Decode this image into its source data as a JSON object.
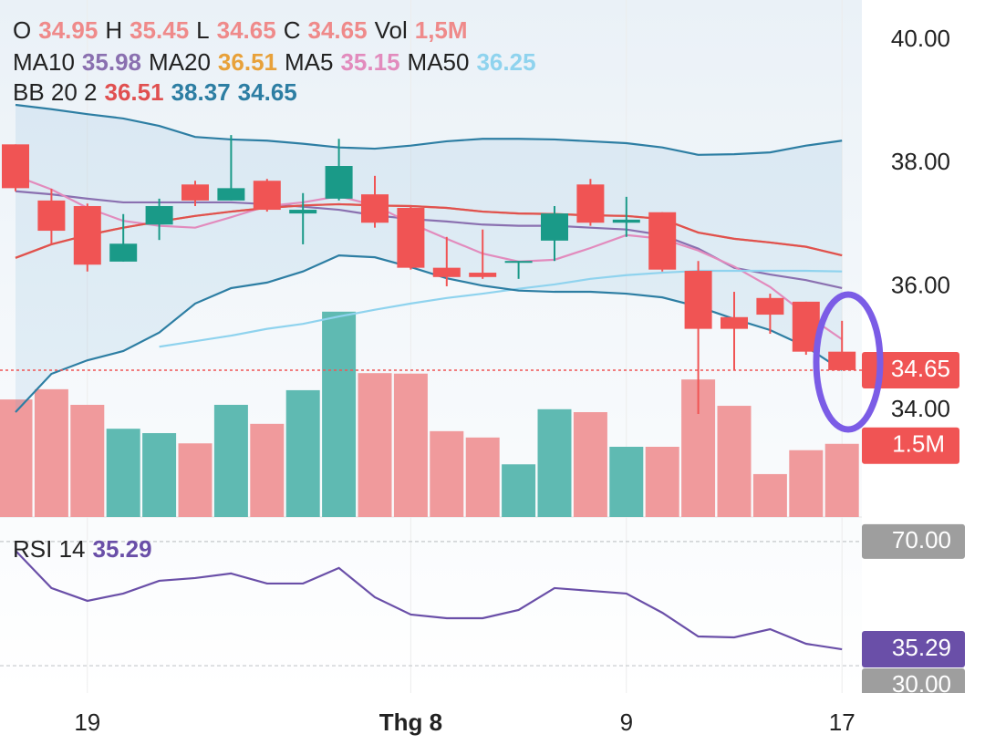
{
  "chart_data": {
    "type": "candlestick",
    "categories": [
      null,
      null,
      "19",
      null,
      null,
      null,
      null,
      null,
      null,
      null,
      null,
      "Thg 8",
      null,
      null,
      null,
      null,
      null,
      "9",
      null,
      null,
      null,
      null,
      null,
      "17"
    ],
    "ohlc_labels": [
      "O",
      "H",
      "L",
      "C"
    ],
    "open": [
      38.31,
      37.4,
      37.31,
      36.41,
      37.01,
      37.66,
      37.4,
      37.72,
      37.19,
      37.43,
      37.5,
      37.28,
      36.31,
      36.23,
      36.39,
      36.75,
      37.66,
      37.04,
      37.21,
      36.26,
      35.51,
      35.82,
      35.76,
      34.95
    ],
    "high": [
      38.31,
      37.59,
      37.35,
      37.18,
      37.43,
      37.72,
      38.46,
      37.75,
      37.52,
      38.4,
      37.8,
      37.31,
      36.81,
      36.93,
      36.42,
      37.31,
      37.75,
      37.46,
      37.21,
      36.42,
      35.92,
      35.89,
      35.76,
      35.45
    ],
    "low": [
      37.55,
      36.69,
      36.25,
      36.41,
      36.76,
      37.31,
      37.4,
      37.22,
      36.69,
      37.4,
      36.96,
      36.28,
      36.01,
      36.13,
      36.13,
      36.42,
      36.99,
      36.81,
      36.25,
      33.94,
      34.65,
      35.24,
      34.9,
      34.65
    ],
    "close": [
      37.6,
      36.91,
      36.36,
      36.7,
      37.31,
      37.4,
      37.6,
      37.25,
      37.25,
      37.96,
      37.04,
      36.31,
      36.16,
      36.16,
      36.42,
      37.19,
      37.04,
      37.09,
      36.28,
      35.32,
      35.32,
      35.55,
      34.95,
      34.65
    ],
    "up_color": "#1a9a88",
    "down_color": "#f05454",
    "up_volume_color": "#5fbab2",
    "down_volume_color": "#f09a9c",
    "header_value_color": "#ef8a8a",
    "ylim": [
      32.27,
      40.65
    ],
    "yticks": [
      {
        "value": 40,
        "label": "40.00"
      },
      {
        "value": 38,
        "label": "38.00"
      },
      {
        "value": 36,
        "label": "36.00"
      },
      {
        "value": 34,
        "label": "34.00"
      }
    ],
    "volume": {
      "name": "Vol",
      "values": [
        2.41,
        2.62,
        2.3,
        1.81,
        1.72,
        1.51,
        2.3,
        1.91,
        2.6,
        4.21,
        2.95,
        2.94,
        1.76,
        1.63,
        1.08,
        2.21,
        2.15,
        1.44,
        1.44,
        2.82,
        2.28,
        0.88,
        1.37,
        1.5
      ]
    },
    "volume_labels": {
      "header": "1,5M",
      "axis": "1.5M"
    },
    "volume_lim": [
      0,
      10.6
    ],
    "lines": [
      {
        "name": "MA10",
        "color": "#8a70b0",
        "values": [
          37.55,
          37.5,
          37.43,
          37.37,
          37.37,
          37.37,
          37.37,
          37.34,
          37.3,
          37.25,
          37.16,
          37.1,
          37.06,
          37.01,
          36.99,
          36.99,
          36.96,
          36.93,
          36.84,
          36.62,
          36.31,
          36.2,
          36.11,
          35.98
        ]
      },
      {
        "name": "MA20",
        "color": "#e8a13a",
        "values": [
          36.47,
          36.69,
          36.84,
          36.96,
          37.06,
          37.15,
          37.22,
          37.28,
          37.32,
          37.34,
          37.32,
          37.31,
          37.28,
          37.22,
          37.19,
          37.18,
          37.16,
          37.15,
          37.1,
          36.88,
          36.78,
          36.72,
          36.65,
          36.51
        ]
      },
      {
        "name": "MA5",
        "color": "#e28bbd",
        "values": [
          37.8,
          37.58,
          37.28,
          37.07,
          36.99,
          36.96,
          37.13,
          37.31,
          37.37,
          37.47,
          37.32,
          37.03,
          36.78,
          36.54,
          36.41,
          36.44,
          36.63,
          36.84,
          36.78,
          36.59,
          36.33,
          36.0,
          35.55,
          35.15
        ]
      },
      {
        "name": "MA50",
        "color": "#8fd3ee",
        "values": [
          null,
          null,
          null,
          null,
          35.03,
          35.12,
          35.21,
          35.32,
          35.4,
          35.52,
          35.63,
          35.73,
          35.82,
          35.89,
          35.97,
          36.04,
          36.13,
          36.19,
          36.23,
          36.26,
          36.26,
          36.26,
          36.26,
          36.25
        ]
      }
    ],
    "bb": {
      "name": "BB 20 2",
      "basis_color": "#e05050",
      "band_color": "#2d7ea3",
      "basis": [
        36.47,
        36.69,
        36.84,
        36.96,
        37.06,
        37.15,
        37.22,
        37.28,
        37.32,
        37.34,
        37.32,
        37.31,
        37.28,
        37.22,
        37.19,
        37.18,
        37.16,
        37.15,
        37.1,
        36.88,
        36.78,
        36.72,
        36.65,
        36.51
      ],
      "upper": [
        38.95,
        38.88,
        38.8,
        38.73,
        38.61,
        38.43,
        38.39,
        38.37,
        38.32,
        38.26,
        38.24,
        38.29,
        38.36,
        38.4,
        38.4,
        38.39,
        38.36,
        38.33,
        38.26,
        38.14,
        38.15,
        38.18,
        38.29,
        38.37
      ],
      "lower": [
        33.97,
        34.59,
        34.81,
        34.96,
        35.26,
        35.73,
        35.98,
        36.07,
        36.25,
        36.51,
        36.48,
        36.32,
        36.14,
        36.02,
        35.94,
        35.92,
        35.92,
        35.89,
        35.83,
        35.68,
        35.48,
        35.3,
        35.03,
        34.65
      ]
    },
    "rsi": {
      "name": "RSI 14",
      "color": "#6a4fa8",
      "values": [
        67.06,
        55.0,
        50.88,
        53.24,
        57.35,
        58.24,
        59.71,
        56.47,
        56.47,
        61.47,
        52.06,
        46.47,
        45.29,
        45.29,
        47.94,
        55.0,
        54.12,
        53.24,
        47.06,
        39.41,
        39.12,
        41.76,
        37.06,
        35.29
      ],
      "ylim": [
        21.2,
        77.9
      ],
      "yticks": [
        {
          "value": 70,
          "label": "70.00"
        },
        {
          "value": 30,
          "label": "30.00"
        }
      ]
    }
  }
}
